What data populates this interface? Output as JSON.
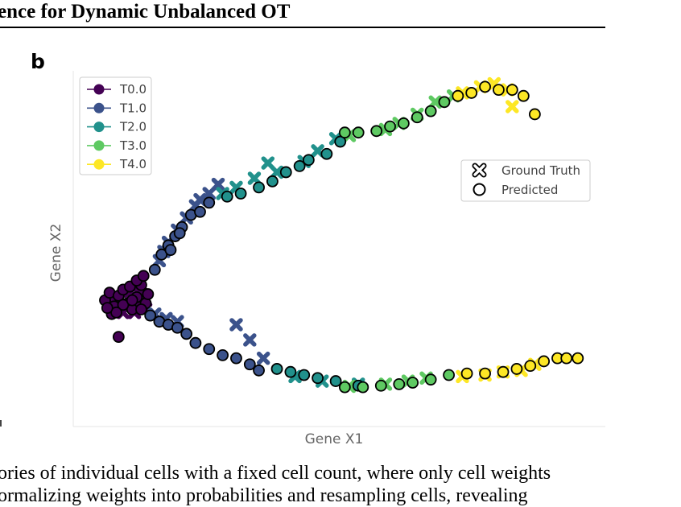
{
  "header": {
    "title": "ence for Dynamic Unbalanced OT"
  },
  "panel_label": "b",
  "caption": {
    "line1": "ories of individual cells with a fixed cell count, where only cell weights",
    "line2": "ormalizing weights into probabilities and resampling cells, revealing"
  },
  "colors": {
    "T0.0": "#440154",
    "T1.0": "#3b528b",
    "T2.0": "#21918c",
    "T3.0": "#5ec962",
    "T4.0": "#fde725",
    "axis_text": "#666666"
  },
  "chart_data": {
    "type": "scatter",
    "xlabel": "Gene X1",
    "ylabel": "Gene X2",
    "xlim": [
      0,
      10
    ],
    "ylim": [
      0,
      10
    ],
    "grid": false,
    "legend_series_placement": "top-left",
    "legend_markers_placement": "right",
    "markers": [
      {
        "name": "Ground Truth",
        "shape": "x"
      },
      {
        "name": "Predicted",
        "shape": "circle"
      }
    ],
    "series": [
      {
        "name": "T0.0",
        "ground_truth": [
          [
            0.7,
            3.4
          ],
          [
            0.85,
            3.3
          ],
          [
            1.0,
            3.5
          ],
          [
            1.1,
            3.25
          ],
          [
            0.95,
            3.7
          ],
          [
            1.2,
            3.6
          ],
          [
            0.8,
            3.0
          ],
          [
            1.05,
            3.0
          ],
          [
            1.25,
            3.2
          ],
          [
            0.55,
            3.45
          ],
          [
            1.15,
            3.9
          ],
          [
            1.3,
            3.4
          ]
        ],
        "predicted": [
          [
            0.4,
            3.4
          ],
          [
            0.5,
            3.65
          ],
          [
            0.6,
            3.2
          ],
          [
            0.7,
            3.55
          ],
          [
            0.8,
            3.75
          ],
          [
            0.9,
            3.3
          ],
          [
            1.0,
            3.1
          ],
          [
            1.1,
            3.5
          ],
          [
            1.2,
            3.9
          ],
          [
            1.3,
            3.3
          ],
          [
            0.55,
            2.95
          ],
          [
            0.8,
            3.25
          ],
          [
            0.95,
            3.85
          ],
          [
            1.1,
            4.05
          ],
          [
            1.25,
            4.2
          ],
          [
            1.0,
            3.4
          ],
          [
            0.65,
            3.0
          ],
          [
            1.2,
            3.1
          ],
          [
            1.35,
            3.6
          ],
          [
            0.45,
            3.15
          ],
          [
            0.7,
            2.2
          ]
        ]
      },
      {
        "name": "T1.0",
        "ground_truth": [
          [
            1.6,
            4.7
          ],
          [
            1.8,
            5.3
          ],
          [
            2.0,
            5.7
          ],
          [
            2.2,
            6.1
          ],
          [
            2.4,
            6.5
          ],
          [
            2.7,
            6.9
          ],
          [
            2.9,
            7.2
          ],
          [
            1.5,
            2.95
          ],
          [
            1.75,
            2.8
          ],
          [
            2.0,
            2.7
          ],
          [
            1.7,
            5.0
          ],
          [
            2.5,
            6.7
          ],
          [
            3.3,
            2.6
          ],
          [
            3.6,
            2.1
          ],
          [
            3.9,
            1.5
          ]
        ],
        "predicted": [
          [
            1.5,
            4.4
          ],
          [
            1.65,
            4.9
          ],
          [
            1.8,
            5.2
          ],
          [
            1.95,
            5.5
          ],
          [
            2.1,
            5.8
          ],
          [
            2.3,
            6.2
          ],
          [
            2.5,
            6.3
          ],
          [
            2.7,
            6.6
          ],
          [
            1.85,
            5.05
          ],
          [
            2.05,
            5.6
          ],
          [
            1.4,
            2.9
          ],
          [
            1.6,
            2.7
          ],
          [
            1.8,
            2.6
          ],
          [
            2.0,
            2.5
          ],
          [
            2.2,
            2.3
          ],
          [
            2.4,
            2.0
          ],
          [
            2.7,
            1.8
          ],
          [
            3.0,
            1.6
          ],
          [
            3.3,
            1.5
          ],
          [
            3.6,
            1.3
          ],
          [
            3.8,
            1.1
          ]
        ]
      },
      {
        "name": "T2.0",
        "ground_truth": [
          [
            3.0,
            6.9
          ],
          [
            3.3,
            7.1
          ],
          [
            3.7,
            7.4
          ],
          [
            4.2,
            7.6
          ],
          [
            4.0,
            7.9
          ],
          [
            5.1,
            8.3
          ],
          [
            5.5,
            8.7
          ],
          [
            4.6,
            0.9
          ],
          [
            5.2,
            0.75
          ],
          [
            6.0,
            0.65
          ],
          [
            4.8,
            7.95
          ]
        ],
        "predicted": [
          [
            3.1,
            6.8
          ],
          [
            3.4,
            6.9
          ],
          [
            3.8,
            7.1
          ],
          [
            4.1,
            7.3
          ],
          [
            4.4,
            7.6
          ],
          [
            4.7,
            7.8
          ],
          [
            4.9,
            8.0
          ],
          [
            5.3,
            8.2
          ],
          [
            5.6,
            8.6
          ],
          [
            4.2,
            1.15
          ],
          [
            4.5,
            1.05
          ],
          [
            4.8,
            0.95
          ],
          [
            5.1,
            0.85
          ],
          [
            5.5,
            0.75
          ],
          [
            6.0,
            0.6
          ]
        ]
      },
      {
        "name": "T3.0",
        "ground_truth": [
          [
            5.8,
            8.8
          ],
          [
            6.6,
            9.0
          ],
          [
            6.9,
            9.2
          ],
          [
            7.3,
            9.5
          ],
          [
            7.7,
            9.9
          ],
          [
            8.1,
            10.1
          ],
          [
            5.8,
            0.58
          ],
          [
            6.6,
            0.65
          ],
          [
            7.1,
            0.75
          ],
          [
            7.5,
            0.85
          ]
        ],
        "predicted": [
          [
            5.7,
            8.9
          ],
          [
            6.0,
            8.9
          ],
          [
            6.4,
            8.95
          ],
          [
            6.7,
            9.1
          ],
          [
            7.0,
            9.2
          ],
          [
            7.3,
            9.4
          ],
          [
            7.6,
            9.6
          ],
          [
            7.9,
            9.9
          ],
          [
            5.7,
            0.55
          ],
          [
            6.1,
            0.55
          ],
          [
            6.5,
            0.6
          ],
          [
            6.9,
            0.65
          ],
          [
            7.2,
            0.7
          ],
          [
            7.6,
            0.8
          ],
          [
            8.0,
            0.95
          ]
        ]
      },
      {
        "name": "T4.0",
        "ground_truth": [
          [
            8.3,
            10.2
          ],
          [
            8.7,
            10.4
          ],
          [
            9.0,
            10.5
          ],
          [
            9.3,
            10.3
          ],
          [
            9.4,
            9.75
          ],
          [
            8.3,
            0.9
          ],
          [
            8.8,
            0.95
          ],
          [
            9.2,
            1.05
          ],
          [
            9.6,
            1.1
          ],
          [
            9.9,
            1.3
          ]
        ],
        "predicted": [
          [
            8.2,
            10.1
          ],
          [
            8.5,
            10.2
          ],
          [
            8.8,
            10.4
          ],
          [
            9.1,
            10.3
          ],
          [
            9.4,
            10.3
          ],
          [
            9.65,
            10.1
          ],
          [
            9.9,
            9.5
          ],
          [
            8.4,
            1.0
          ],
          [
            8.8,
            1.0
          ],
          [
            9.2,
            1.05
          ],
          [
            9.5,
            1.15
          ],
          [
            9.8,
            1.25
          ],
          [
            10.1,
            1.4
          ],
          [
            10.4,
            1.5
          ],
          [
            10.6,
            1.5
          ],
          [
            10.85,
            1.5
          ]
        ]
      }
    ]
  }
}
